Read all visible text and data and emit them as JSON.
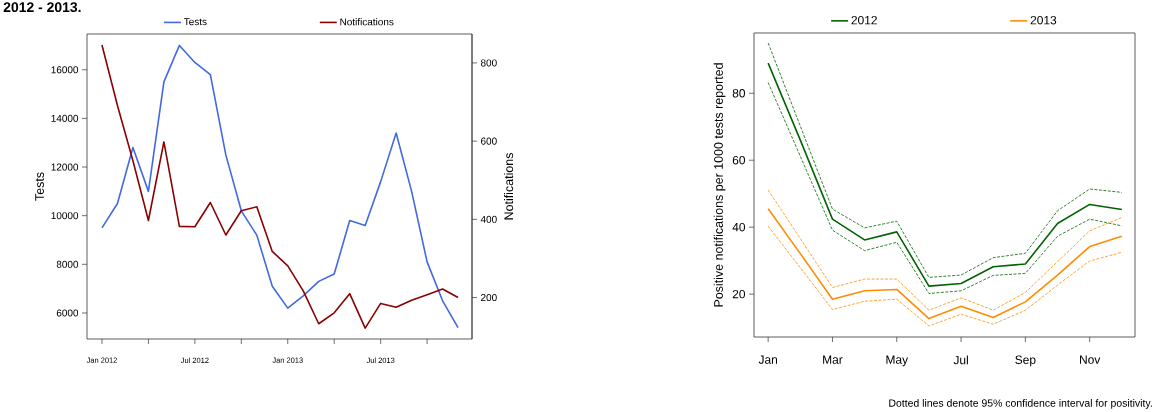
{
  "chart_data": [
    {
      "type": "line",
      "title": "2012 - 2013.",
      "ylabel": "Tests",
      "y2label": "Notifications",
      "x": [
        "2012-01",
        "2012-02",
        "2012-03",
        "2012-04",
        "2012-05",
        "2012-06",
        "2012-07",
        "2012-08",
        "2012-09",
        "2012-10",
        "2012-11",
        "2012-12",
        "2013-01",
        "2013-02",
        "2013-03",
        "2013-04",
        "2013-05",
        "2013-06",
        "2013-07",
        "2013-08",
        "2013-09",
        "2013-10",
        "2013-11",
        "2013-12"
      ],
      "series": [
        {
          "name": "Tests",
          "color": "#4169e1",
          "values": [
            9500,
            10500,
            12800,
            11000,
            15500,
            17000,
            16300,
            15800,
            12500,
            10200,
            9200,
            7100,
            6200,
            6700,
            7300,
            7600,
            9800,
            9600,
            11400,
            13400,
            11000,
            8100,
            6500,
            5400
          ]
        },
        {
          "name": "Notifications",
          "color": "#8b0000",
          "axis": "y2",
          "values": [
            846,
            691,
            550,
            397,
            598,
            382,
            381,
            443,
            360,
            422,
            432,
            318,
            281,
            217,
            133,
            161,
            210,
            122,
            185,
            175,
            193,
            207,
            222,
            200
          ]
        }
      ],
      "xlim": [
        "2011-12-02",
        "2013-12-28"
      ],
      "xticks": [
        {
          "value": "2012-01",
          "label": "Jan 2012"
        },
        {
          "value": "2012-04",
          "label": null
        },
        {
          "value": "2012-07",
          "label": "Jul 2012"
        },
        {
          "value": "2012-10",
          "label": null
        },
        {
          "value": "2013-01",
          "label": "Jan 2013"
        },
        {
          "value": "2013-04",
          "label": null
        },
        {
          "value": "2013-07",
          "label": "Jul 2013"
        },
        {
          "value": "2013-10",
          "label": null
        }
      ],
      "ylim": [
        4930,
        17470
      ],
      "yticks": [
        6000,
        8000,
        10000,
        12000,
        14000,
        16000
      ],
      "y2lim": [
        94,
        874
      ],
      "y2ticks": [
        200,
        400,
        600,
        800
      ],
      "legend": "top"
    },
    {
      "type": "line",
      "ylabel": "Positive notifications per 1000 tests reported",
      "categories": [
        "Jan",
        null,
        "Mar",
        null,
        "May",
        null,
        "Jul",
        null,
        "Sep",
        null,
        "Nov",
        null
      ],
      "series": [
        {
          "name": "2012",
          "color": "#006400",
          "values": [
            89.0,
            66.0,
            42.4,
            36.2,
            38.6,
            22.4,
            23.2,
            28.2,
            29.0,
            41.1,
            46.8,
            45.3
          ]
        },
        {
          "name": "2013",
          "color": "#ff8c00",
          "values": [
            45.5,
            32.1,
            18.5,
            21.0,
            21.4,
            12.7,
            16.4,
            13.0,
            17.7,
            25.7,
            34.2,
            37.3
          ]
        },
        {
          "color": "#006400",
          "line_style": "dashed",
          "values": [
            95.0,
            70.2,
            45.4,
            39.8,
            41.8,
            25.0,
            25.7,
            30.9,
            32.2,
            44.9,
            51.4,
            50.4
          ]
        },
        {
          "color": "#006400",
          "line_style": "dashed",
          "values": [
            83.2,
            61.2,
            39.1,
            33.0,
            35.5,
            20.2,
            21.0,
            25.6,
            26.2,
            37.3,
            42.4,
            40.4
          ]
        },
        {
          "color": "#ff8c00",
          "line_style": "dashed",
          "values": [
            51.1,
            36.6,
            22.0,
            24.5,
            24.5,
            15.2,
            18.9,
            15.2,
            20.5,
            29.7,
            38.9,
            42.9
          ]
        },
        {
          "color": "#ff8c00",
          "line_style": "dashed",
          "values": [
            40.3,
            27.9,
            15.4,
            17.9,
            18.5,
            10.5,
            14.0,
            11.0,
            15.2,
            22.7,
            29.9,
            32.5
          ]
        }
      ],
      "ylim": [
        7.2,
        98
      ],
      "yticks": [
        20,
        40,
        60,
        80
      ],
      "legend": "top",
      "annotations": [
        "Dotted lines denote 95% confidence interval for positivity."
      ]
    }
  ]
}
